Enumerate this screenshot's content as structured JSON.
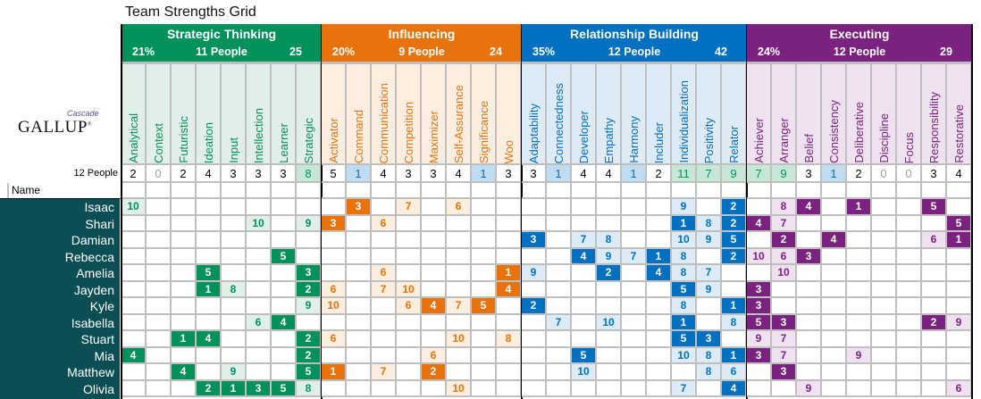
{
  "title": "Team Strengths Grid",
  "logo": {
    "brand": "GALLUP",
    "partner": "Cascade"
  },
  "count_row_label": "12 People",
  "name_header": "Name",
  "groups": [
    {
      "name": "Strategic Thinking",
      "percent": "21%",
      "people": "11 People",
      "total": "25",
      "color": "#00925a",
      "light": "#e0f0e9",
      "themes": [
        "Analytical",
        "Context",
        "Futuristic",
        "Ideation",
        "Input",
        "Intellection",
        "Learner",
        "Strategic"
      ],
      "counts": [
        2,
        0,
        2,
        4,
        3,
        3,
        3,
        8
      ]
    },
    {
      "name": "Influencing",
      "percent": "20%",
      "people": "9 People",
      "total": "24",
      "color": "#e8720c",
      "light": "#fdeee0",
      "themes": [
        "Activator",
        "Command",
        "Communication",
        "Competition",
        "Maximizer",
        "Self-Assurance",
        "Significance",
        "Woo"
      ],
      "counts": [
        5,
        1,
        4,
        3,
        3,
        4,
        1,
        3
      ]
    },
    {
      "name": "Relationship Building",
      "percent": "35%",
      "people": "12 People",
      "total": "42",
      "color": "#0070c0",
      "light": "#ddebf7",
      "themes": [
        "Adaptability",
        "Connectedness",
        "Developer",
        "Empathy",
        "Harmony",
        "Includer",
        "Individualization",
        "Positivity",
        "Relator"
      ],
      "counts": [
        3,
        1,
        4,
        4,
        1,
        2,
        11,
        7,
        9
      ]
    },
    {
      "name": "Executing",
      "percent": "24%",
      "people": "12 People",
      "total": "29",
      "color": "#7b2280",
      "light": "#efe1f0",
      "themes": [
        "Achiever",
        "Arranger",
        "Belief",
        "Consistency",
        "Deliberative",
        "Discipline",
        "Focus",
        "Responsibility",
        "Restorative"
      ],
      "counts": [
        7,
        9,
        3,
        1,
        2,
        0,
        0,
        3,
        4
      ]
    }
  ],
  "people": [
    {
      "name": "Isaac",
      "scores": {
        "Analytical": 10,
        "Command": 3,
        "Competition": 7,
        "Self-Assurance": 6,
        "Individualization": 9,
        "Relator": 2,
        "Arranger": 8,
        "Belief": 4,
        "Deliberative": 1,
        "Responsibility": 5
      }
    },
    {
      "name": "Shari",
      "scores": {
        "Intellection": 10,
        "Strategic": 9,
        "Activator": 3,
        "Communication": 6,
        "Individualization": 1,
        "Positivity": 8,
        "Relator": 2,
        "Achiever": 4,
        "Arranger": 7,
        "Restorative": 5
      }
    },
    {
      "name": "Damian",
      "scores": {
        "Adaptability": 3,
        "Developer": 7,
        "Empathy": 8,
        "Individualization": 10,
        "Positivity": 9,
        "Relator": 5,
        "Arranger": 2,
        "Consistency": 4,
        "Responsibility": 6,
        "Restorative": 1
      }
    },
    {
      "name": "Rebecca",
      "scores": {
        "Learner": 5,
        "Developer": 4,
        "Empathy": 9,
        "Harmony": 7,
        "Includer": 1,
        "Individualization": 8,
        "Relator": 2,
        "Achiever": 10,
        "Arranger": 6,
        "Belief": 3
      }
    },
    {
      "name": "Amelia",
      "scores": {
        "Ideation": 5,
        "Strategic": 3,
        "Communication": 6,
        "Woo": 1,
        "Adaptability": 9,
        "Empathy": 2,
        "Includer": 4,
        "Individualization": 8,
        "Positivity": 7,
        "Arranger": 10
      }
    },
    {
      "name": "Jayden",
      "scores": {
        "Ideation": 1,
        "Input": 8,
        "Strategic": 2,
        "Activator": 6,
        "Communication": 7,
        "Competition": 10,
        "Woo": 4,
        "Individualization": 5,
        "Positivity": 9,
        "Achiever": 3
      }
    },
    {
      "name": "Kyle",
      "scores": {
        "Strategic": 9,
        "Activator": 10,
        "Competition": 6,
        "Maximizer": 4,
        "Self-Assurance": 7,
        "Significance": 5,
        "Adaptability": 2,
        "Individualization": 8,
        "Relator": 1,
        "Achiever": 3
      }
    },
    {
      "name": "Isabella",
      "scores": {
        "Intellection": 6,
        "Learner": 4,
        "Connectedness": 7,
        "Empathy": 10,
        "Individualization": 1,
        "Relator": 8,
        "Achiever": 5,
        "Arranger": 3,
        "Responsibility": 2,
        "Restorative": 9
      }
    },
    {
      "name": "Stuart",
      "scores": {
        "Futuristic": 1,
        "Ideation": 4,
        "Strategic": 2,
        "Activator": 6,
        "Self-Assurance": 10,
        "Woo": 8,
        "Individualization": 5,
        "Positivity": 3,
        "Achiever": 9,
        "Arranger": 7
      }
    },
    {
      "name": "Mia",
      "scores": {
        "Analytical": 4,
        "Strategic": 2,
        "Maximizer": 6,
        "Developer": 5,
        "Individualization": 10,
        "Positivity": 8,
        "Relator": 1,
        "Achiever": 3,
        "Arranger": 7,
        "Deliberative": 9
      }
    },
    {
      "name": "Matthew",
      "scores": {
        "Futuristic": 4,
        "Input": 9,
        "Strategic": 5,
        "Activator": 1,
        "Communication": 7,
        "Maximizer": 2,
        "Developer": 10,
        "Positivity": 8,
        "Relator": 6,
        "Arranger": 3
      }
    },
    {
      "name": "Olivia",
      "scores": {
        "Ideation": 2,
        "Input": 1,
        "Intellection": 3,
        "Learner": 5,
        "Strategic": 8,
        "Self-Assurance": 10,
        "Individualization": 7,
        "Relator": 4,
        "Belief": 9,
        "Restorative": 6
      }
    }
  ],
  "count_colors": {
    "high": "#c6e7d6",
    "high_text": "#00925a",
    "low": "#c0dcf2",
    "low_text": "#0070c0",
    "zero_text": "#a0a0a0"
  }
}
